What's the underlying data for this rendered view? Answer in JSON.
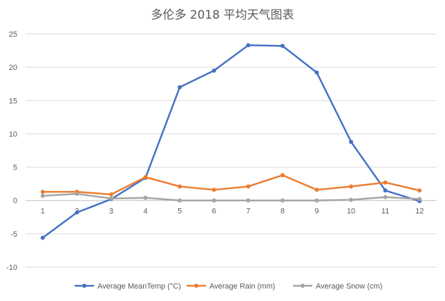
{
  "chart_data": {
    "type": "line",
    "title": "多伦多 2018 平均天气图表",
    "categories": [
      "1",
      "2",
      "3",
      "4",
      "5",
      "6",
      "7",
      "8",
      "9",
      "10",
      "11",
      "12"
    ],
    "ylim": [
      -10,
      25
    ],
    "yticks": [
      25,
      20,
      15,
      10,
      5,
      0,
      -5,
      -10
    ],
    "grid": true,
    "legend_position": "bottom",
    "series": [
      {
        "name": "Average MeanTemp (°C)",
        "color": "#4472C4",
        "values": [
          -5.6,
          -1.8,
          0.2,
          3.4,
          17.0,
          19.5,
          23.3,
          23.2,
          19.2,
          8.8,
          1.5,
          -0.1
        ]
      },
      {
        "name": "Average Rain (mm)",
        "color": "#ED7D31",
        "values": [
          1.3,
          1.3,
          0.9,
          3.5,
          2.1,
          1.6,
          2.1,
          3.8,
          1.6,
          2.1,
          2.7,
          1.5
        ]
      },
      {
        "name": "Average Snow (cm)",
        "color": "#A5A5A5",
        "values": [
          0.7,
          1.0,
          0.3,
          0.4,
          0.0,
          0.0,
          0.0,
          0.0,
          0.0,
          0.1,
          0.5,
          0.2
        ]
      }
    ]
  }
}
